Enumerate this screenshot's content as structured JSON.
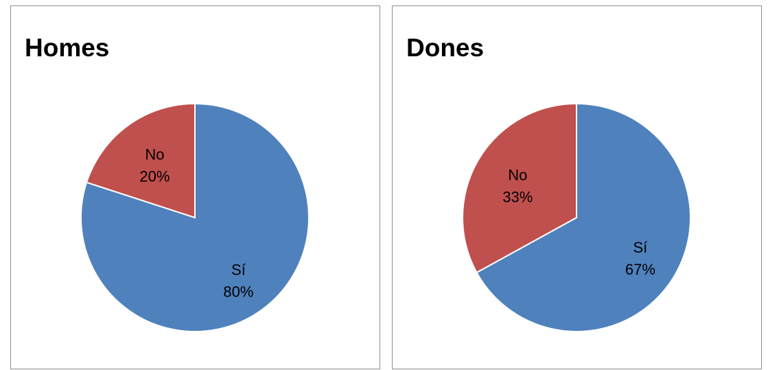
{
  "chart_data": [
    {
      "type": "pie",
      "title": "Homes",
      "slices": [
        {
          "label": "Sí",
          "value": 80,
          "percent_label": "80%",
          "color": "#4f81bd"
        },
        {
          "label": "No",
          "value": 20,
          "percent_label": "20%",
          "color": "#c0504d"
        }
      ]
    },
    {
      "type": "pie",
      "title": "Dones",
      "slices": [
        {
          "label": "Sí",
          "value": 67,
          "percent_label": "67%",
          "color": "#4f81bd"
        },
        {
          "label": "No",
          "value": 33,
          "percent_label": "33%",
          "color": "#c0504d"
        }
      ]
    }
  ]
}
